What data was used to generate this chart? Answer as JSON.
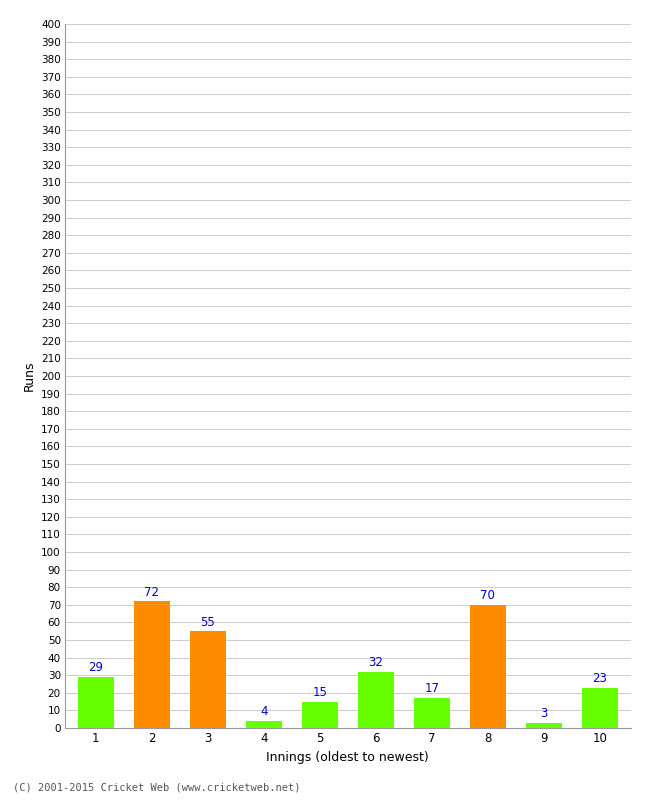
{
  "categories": [
    "1",
    "2",
    "3",
    "4",
    "5",
    "6",
    "7",
    "8",
    "9",
    "10"
  ],
  "values": [
    29,
    72,
    55,
    4,
    15,
    32,
    17,
    70,
    3,
    23
  ],
  "bar_colors": [
    "#66ff00",
    "#ff8c00",
    "#ff8c00",
    "#66ff00",
    "#66ff00",
    "#66ff00",
    "#66ff00",
    "#ff8c00",
    "#66ff00",
    "#66ff00"
  ],
  "xlabel": "Innings (oldest to newest)",
  "ylabel": "Runs",
  "ylim": [
    0,
    400
  ],
  "ytick_step": 10,
  "label_color": "#0000cc",
  "grid_color": "#cccccc",
  "background_color": "#ffffff",
  "footer": "(C) 2001-2015 Cricket Web (www.cricketweb.net)"
}
